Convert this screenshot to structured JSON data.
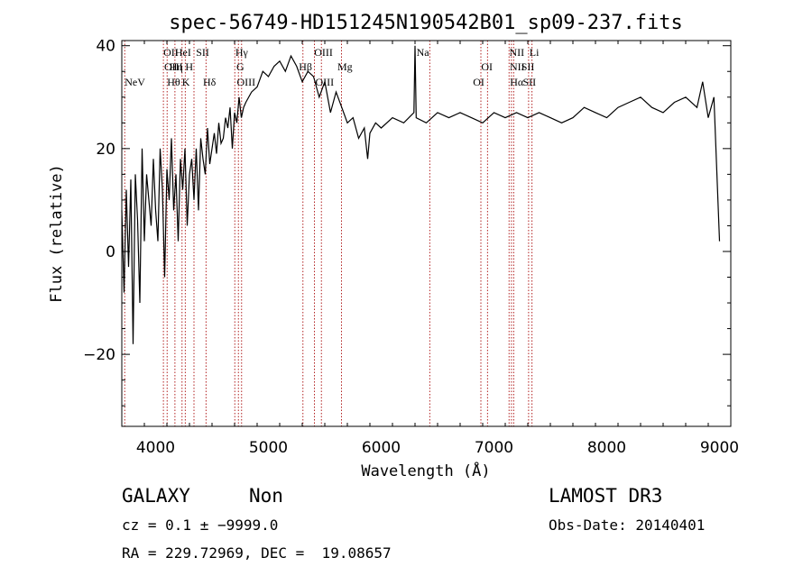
{
  "chart_data": {
    "type": "line",
    "title": "spec-56749-HD151245N190542B01_sp09-237.fits",
    "xlabel": "Wavelength (Å)",
    "ylabel": "Flux (relative)",
    "xlim": [
      3700,
      9100
    ],
    "ylim": [
      -34,
      41
    ],
    "x_ticks": [
      4000,
      5000,
      6000,
      7000,
      8000,
      9000
    ],
    "y_ticks": [
      -20,
      0,
      20,
      40
    ],
    "y_tick_labels": [
      "−20",
      "0",
      "20",
      "40"
    ],
    "grid": false,
    "series_color": "#000000",
    "line_marker_color": "#b22222",
    "spectrum": {
      "x": [
        3700,
        3720,
        3740,
        3760,
        3780,
        3800,
        3820,
        3840,
        3860,
        3880,
        3900,
        3920,
        3940,
        3960,
        3980,
        4000,
        4020,
        4040,
        4060,
        4080,
        4100,
        4120,
        4140,
        4160,
        4180,
        4200,
        4220,
        4240,
        4260,
        4280,
        4300,
        4320,
        4340,
        4360,
        4380,
        4400,
        4420,
        4440,
        4460,
        4480,
        4500,
        4520,
        4540,
        4560,
        4580,
        4600,
        4620,
        4640,
        4660,
        4680,
        4700,
        4720,
        4740,
        4760,
        4780,
        4800,
        4850,
        4900,
        4950,
        5000,
        5050,
        5100,
        5150,
        5200,
        5250,
        5300,
        5350,
        5400,
        5450,
        5500,
        5550,
        5600,
        5650,
        5700,
        5750,
        5800,
        5850,
        5880,
        5900,
        5950,
        6000,
        6100,
        6200,
        6290,
        6300,
        6310,
        6400,
        6500,
        6600,
        6700,
        6800,
        6900,
        7000,
        7100,
        7200,
        7300,
        7400,
        7500,
        7600,
        7700,
        7800,
        7900,
        8000,
        8100,
        8200,
        8300,
        8400,
        8500,
        8600,
        8700,
        8800,
        8850,
        8900,
        8950,
        9000
      ],
      "y": [
        8,
        -8,
        12,
        -3,
        14,
        -18,
        15,
        6,
        -10,
        20,
        2,
        15,
        10,
        5,
        18,
        8,
        2,
        20,
        12,
        -5,
        16,
        10,
        22,
        8,
        15,
        2,
        18,
        12,
        20,
        5,
        15,
        18,
        10,
        20,
        8,
        22,
        18,
        15,
        24,
        17,
        20,
        23,
        19,
        25,
        21,
        22,
        26,
        24,
        28,
        20,
        27,
        25,
        30,
        26,
        28,
        29,
        31,
        32,
        35,
        34,
        36,
        37,
        35,
        38,
        36,
        33,
        35,
        34,
        30,
        33,
        27,
        31,
        28,
        25,
        26,
        22,
        24,
        18,
        23,
        25,
        24,
        26,
        25,
        27,
        40,
        26,
        25,
        27,
        26,
        27,
        26,
        25,
        27,
        26,
        27,
        26,
        27,
        26,
        25,
        26,
        28,
        27,
        26,
        28,
        29,
        30,
        28,
        27,
        29,
        30,
        28,
        33,
        26,
        30,
        2
      ]
    },
    "emission_lines": [
      {
        "label": "NeV",
        "wavelength": 3726,
        "row": 2
      },
      {
        "label": "OII",
        "wavelength": 4069,
        "row": 0
      },
      {
        "label": "OIII",
        "wavelength": 4076,
        "row": 1
      },
      {
        "label": "Hθ",
        "wavelength": 4102,
        "row": 2
      },
      {
        "label": "Hη",
        "wavelength": 4122,
        "row": 1
      },
      {
        "label": "HeI",
        "wavelength": 4171,
        "row": 0
      },
      {
        "label": "K",
        "wavelength": 4234,
        "row": 2
      },
      {
        "label": "H",
        "wavelength": 4263,
        "row": 1
      },
      {
        "label": "SII",
        "wavelength": 4358,
        "row": 0
      },
      {
        "label": "Hδ",
        "wavelength": 4420,
        "row": 2
      },
      {
        "label": "Hγ",
        "wavelength": 4707,
        "row": 0
      },
      {
        "label": "G",
        "wavelength": 4716,
        "row": 1
      },
      {
        "label": "OIII",
        "wavelength": 4720,
        "row": 2
      },
      {
        "label": "Hβ",
        "wavelength": 5270,
        "row": 1
      },
      {
        "label": "OIII",
        "wavelength": 5406,
        "row": 0
      },
      {
        "label": "OIII",
        "wavelength": 5416,
        "row": 2
      },
      {
        "label": "Mg",
        "wavelength": 5612,
        "row": 1
      },
      {
        "label": "Na",
        "wavelength": 6313,
        "row": 0
      },
      {
        "label": "OI",
        "wavelength": 6887,
        "row": 1
      },
      {
        "label": "OI",
        "wavelength": 6814,
        "row": 2
      },
      {
        "label": "NII",
        "wavelength": 7136,
        "row": 0
      },
      {
        "label": "NII",
        "wavelength": 7140,
        "row": 1
      },
      {
        "label": "Hα",
        "wavelength": 7142,
        "row": 2
      },
      {
        "label": "SII",
        "wavelength": 7242,
        "row": 1
      },
      {
        "label": "Li",
        "wavelength": 7314,
        "row": 0
      },
      {
        "label": "SII",
        "wavelength": 7256,
        "row": 2
      }
    ],
    "marker_wavelengths": [
      3726,
      4069,
      4102,
      4171,
      4234,
      4263,
      4340,
      4447,
      4702,
      4734,
      4762,
      5306,
      5408,
      5470,
      5648,
      6431,
      6884,
      6943,
      7134,
      7155,
      7175,
      7307,
      7337
    ]
  },
  "footer": {
    "object_class": "GALAXY",
    "subclass": "Non",
    "survey": "LAMOST DR3",
    "redshift": "cz = 0.1 ± −9999.0",
    "obs_date": "Obs-Date: 20140401",
    "coordinates": "RA = 229.72969, DEC =  19.08657"
  }
}
